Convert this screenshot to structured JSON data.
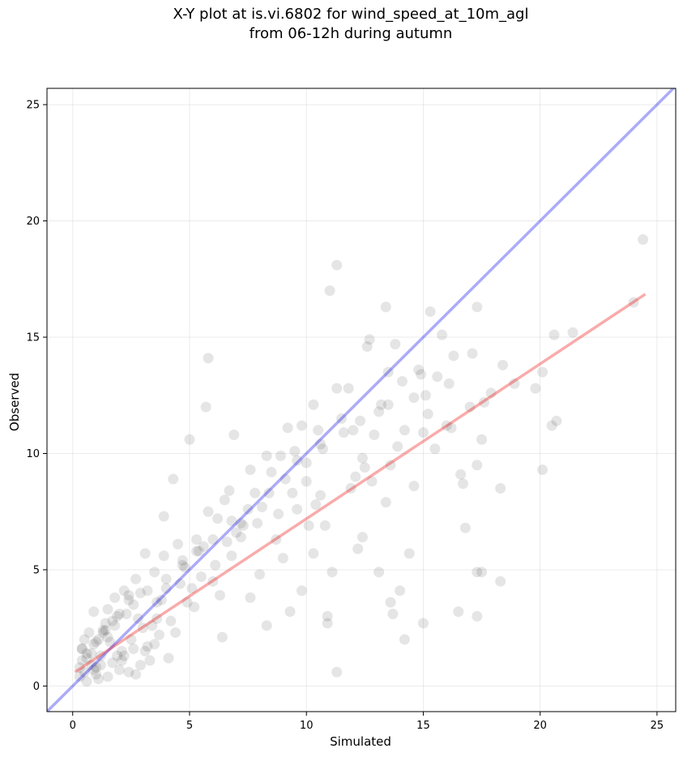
{
  "chart_data": {
    "type": "scatter",
    "title_line1": "X-Y plot at is.vi.6802 for wind_speed_at_10m_agl",
    "title_line2": "from 06-12h during autumn",
    "xlabel": "Simulated",
    "ylabel": "Observed",
    "xlim": [
      -1.1,
      25.8
    ],
    "ylim": [
      -1.1,
      25.7
    ],
    "xticks": [
      0,
      5,
      10,
      15,
      20,
      25
    ],
    "yticks": [
      0,
      5,
      10,
      15,
      20,
      25
    ],
    "grid": true,
    "colors": {
      "points": "#000000",
      "one_to_one": "#0000ee",
      "fit": "#ee0000"
    },
    "one_to_one_line": {
      "x": [
        -1.1,
        25.8
      ],
      "y": [
        -1.1,
        25.8
      ]
    },
    "fit_line": {
      "x": [
        0.1,
        24.5
      ],
      "y": [
        0.6,
        16.85
      ]
    },
    "points": {
      "x": [
        24.4,
        24.0,
        21.4,
        20.6,
        20.7,
        20.1,
        20.5,
        20.1,
        19.8,
        18.9,
        18.4,
        18.3,
        17.9,
        17.6,
        17.5,
        17.3,
        17.3,
        17.3,
        17.1,
        17.0,
        16.8,
        16.6,
        16.5,
        16.2,
        16.1,
        15.8,
        15.5,
        15.3,
        15.1,
        15.0,
        14.9,
        14.6,
        14.2,
        14.0,
        13.8,
        13.7,
        13.6,
        13.5,
        13.4,
        13.1,
        12.9,
        12.7,
        12.4,
        12.2,
        11.8,
        11.5,
        11.3,
        11.0,
        10.9,
        10.6,
        10.3,
        10.0,
        9.6,
        9.2,
        8.8,
        8.3,
        7.8,
        7.3,
        6.9,
        6.5,
        6.2,
        5.8,
        5.7,
        5.3,
        5.0,
        4.7,
        4.3,
        3.9,
        3.5,
        3.1,
        2.7,
        2.4,
        2.0,
        1.7,
        1.4,
        1.1,
        0.9,
        0.6,
        0.4,
        0.3,
        18.3,
        17.5,
        17.3,
        16.7,
        14.4,
        14.2,
        13.9,
        13.6,
        13.4,
        13.1,
        12.8,
        12.4,
        12.1,
        11.3,
        11.1,
        10.9,
        10.6,
        10.3,
        10.1,
        9.8,
        9.6,
        9.3,
        9.0,
        8.7,
        8.3,
        8.0,
        7.6,
        7.2,
        6.8,
        6.4,
        6.0,
        5.6,
        5.2,
        4.8,
        4.4,
        4.0,
        3.6,
        3.2,
        2.8,
        2.4,
        2.1,
        1.8,
        1.5,
        1.2,
        1.0,
        0.8,
        0.6,
        0.5,
        0.4,
        0.3,
        11.3,
        12.0,
        5.8,
        7.6,
        9.8,
        14.1,
        15.0,
        3.9,
        6.7,
        8.9,
        10.4,
        11.9,
        12.5,
        2.9,
        4.5,
        6.1,
        7.2,
        8.1,
        9.4,
        10.8,
        1.5,
        2.2,
        3.0,
        3.8,
        4.6,
        5.4,
        6.3,
        7.0,
        1.0,
        1.6,
        2.3,
        3.1,
        3.7,
        4.2,
        4.9,
        5.5,
        0.7,
        1.2,
        1.9,
        2.5,
        3.3,
        0.9,
        1.4,
        2.0,
        2.6,
        1.1,
        1.7,
        0.5,
        0.8,
        1.3,
        2.9,
        3.5,
        4.1,
        1.8,
        2.4,
        0.6,
        1.0,
        1.5,
        2.1,
        2.7,
        3.4,
        0.4,
        0.9,
        1.3,
        1.9,
        2.6,
        3.2,
        4.0,
        4.7,
        5.3,
        6.0,
        6.8,
        7.5,
        8.4,
        9.1,
        10.0,
        10.7,
        11.6,
        12.3,
        13.2,
        14.8,
        15.6,
        16.3,
        12.6,
        13.5,
        14.6,
        15.2,
        16.0,
        8.5,
        9.5,
        10.5,
        7.9,
        6.6,
        5.1,
        3.6,
        2.2
      ],
      "y": [
        19.2,
        16.5,
        15.2,
        15.1,
        11.4,
        13.5,
        11.2,
        9.3,
        12.8,
        13.0,
        13.8,
        8.5,
        12.6,
        12.2,
        10.6,
        16.3,
        4.9,
        3.0,
        14.3,
        12.0,
        6.8,
        9.1,
        3.2,
        11.1,
        13.0,
        15.1,
        10.2,
        16.1,
        12.5,
        2.7,
        13.4,
        8.6,
        11.0,
        4.1,
        14.7,
        3.1,
        9.5,
        12.1,
        16.3,
        11.8,
        10.8,
        14.9,
        9.8,
        5.9,
        12.8,
        11.5,
        18.1,
        17.0,
        2.7,
        10.4,
        12.1,
        8.8,
        9.7,
        11.1,
        7.4,
        9.9,
        8.3,
        6.9,
        10.8,
        8.0,
        7.2,
        14.1,
        12.0,
        6.3,
        10.6,
        5.4,
        8.9,
        7.3,
        4.9,
        5.7,
        4.6,
        3.7,
        3.1,
        2.8,
        2.4,
        2.0,
        1.8,
        1.4,
        1.1,
        0.8,
        4.5,
        4.9,
        9.5,
        8.7,
        5.7,
        2.0,
        10.3,
        3.6,
        7.9,
        4.9,
        8.8,
        6.4,
        9.0,
        0.6,
        4.9,
        3.0,
        8.2,
        5.7,
        6.9,
        4.1,
        7.6,
        3.2,
        5.5,
        6.3,
        2.6,
        4.8,
        3.8,
        7.0,
        5.6,
        2.1,
        4.5,
        6.0,
        3.4,
        5.1,
        2.3,
        4.2,
        3.6,
        1.7,
        2.9,
        3.9,
        1.5,
        2.6,
        2.1,
        1.3,
        1.9,
        0.9,
        1.2,
        0.6,
        1.6,
        0.4,
        12.8,
        11.0,
        7.5,
        9.3,
        11.2,
        13.1,
        10.9,
        5.6,
        8.4,
        9.9,
        7.8,
        8.5,
        9.4,
        4.0,
        6.1,
        5.2,
        6.4,
        7.7,
        8.3,
        6.9,
        3.3,
        4.1,
        2.5,
        3.7,
        4.4,
        5.8,
        3.9,
        6.6,
        0.5,
        1.9,
        3.1,
        1.5,
        2.2,
        2.8,
        3.6,
        4.7,
        2.3,
        0.9,
        1.3,
        2.0,
        1.1,
        3.2,
        2.7,
        0.7,
        1.6,
        0.3,
        1.0,
        2.0,
        1.4,
        2.3,
        0.9,
        1.8,
        1.2,
        3.8,
        0.6,
        0.2,
        0.8,
        0.4,
        1.1,
        0.5,
        2.6,
        1.6,
        0.7,
        2.4,
        3.0,
        3.5,
        4.1,
        4.6,
        5.2,
        5.8,
        6.3,
        7.1,
        7.6,
        8.3,
        8.9,
        9.6,
        10.2,
        10.9,
        11.4,
        12.1,
        13.6,
        13.3,
        14.2,
        14.6,
        13.5,
        12.4,
        11.7,
        11.2,
        9.2,
        10.1,
        11.0,
        7.0,
        6.2,
        4.2,
        2.9,
        1.3
      ]
    }
  }
}
